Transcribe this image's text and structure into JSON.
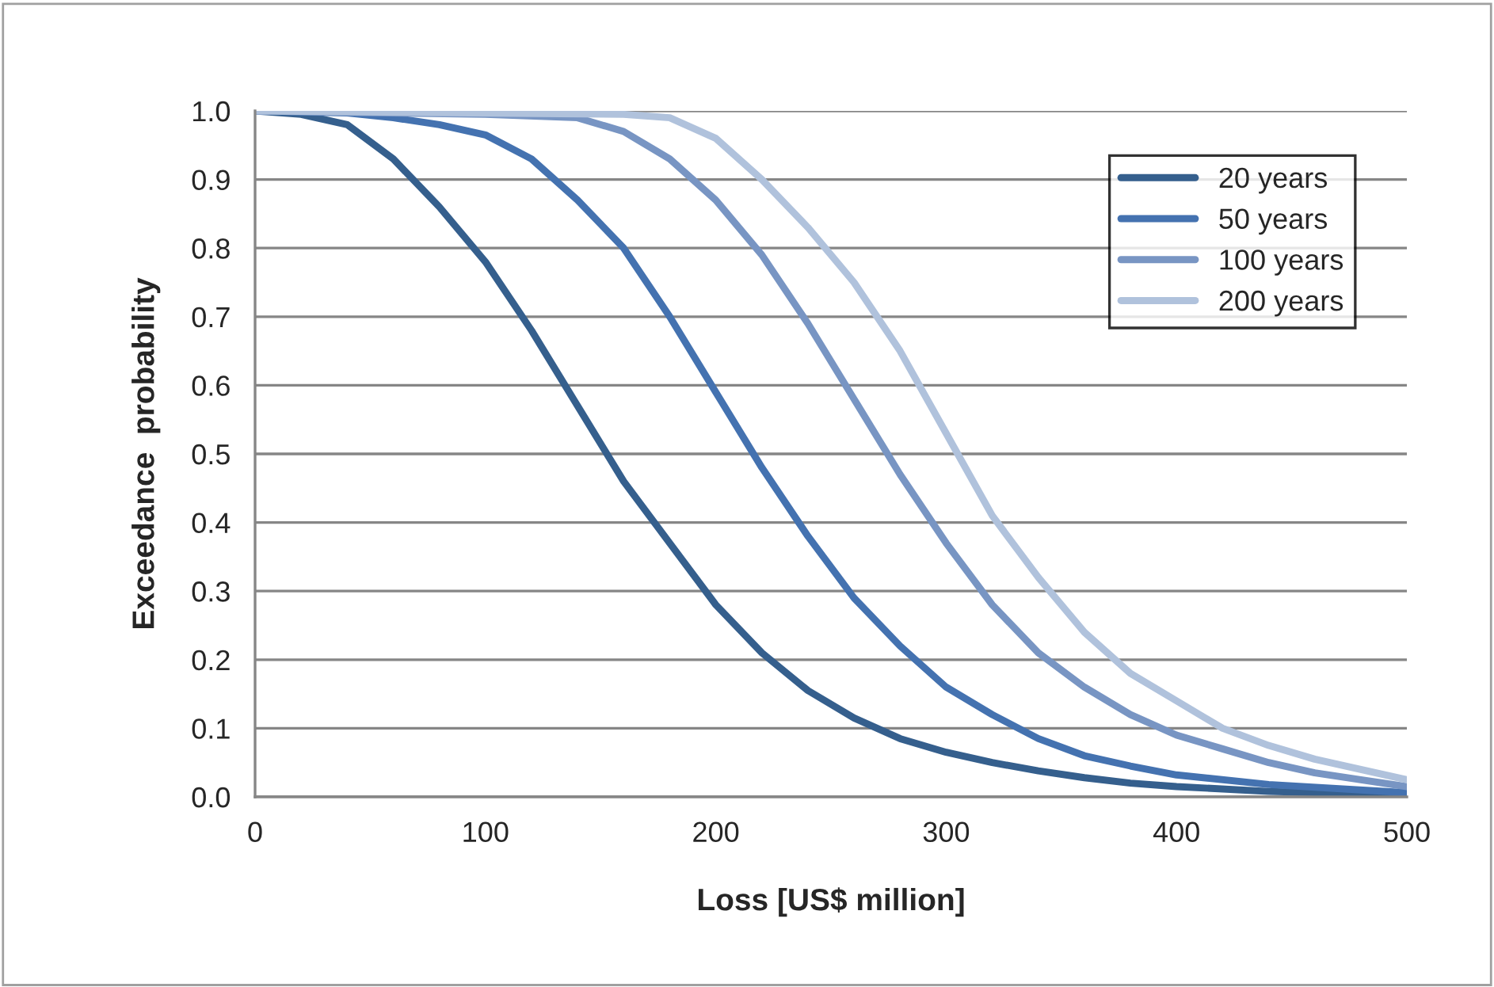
{
  "chart_data": {
    "type": "line",
    "xlabel": "Loss [US$ million]",
    "ylabel": "Exceedance  probability",
    "xlim": [
      0,
      500
    ],
    "xticks": [
      0,
      100,
      200,
      300,
      400,
      500
    ],
    "ylim": [
      0,
      1
    ],
    "yticks": [
      {
        "value": 0,
        "label": "0.0"
      },
      {
        "value": 0.1,
        "label": "0.1"
      },
      {
        "value": 0.2,
        "label": "0.2"
      },
      {
        "value": 0.3,
        "label": "0.3"
      },
      {
        "value": 0.4,
        "label": "0.4"
      },
      {
        "value": 0.5,
        "label": "0.5"
      },
      {
        "value": 0.6,
        "label": "0.6"
      },
      {
        "value": 0.7,
        "label": "0.7"
      },
      {
        "value": 0.8,
        "label": "0.8"
      },
      {
        "value": 0.9,
        "label": "0.9"
      },
      {
        "value": 1,
        "label": "1.0"
      }
    ],
    "grid": "y",
    "legend": "top right",
    "marker": "none",
    "line_style": "solid",
    "series": [
      {
        "name": "20 years",
        "color": "#355f8d",
        "x": [
          0,
          20,
          40,
          60,
          80,
          100,
          120,
          140,
          160,
          180,
          200,
          220,
          240,
          260,
          280,
          300,
          320,
          340,
          360,
          380,
          400,
          440,
          500
        ],
        "values": [
          1.0,
          0.995,
          0.98,
          0.93,
          0.86,
          0.78,
          0.68,
          0.57,
          0.46,
          0.37,
          0.28,
          0.21,
          0.155,
          0.115,
          0.085,
          0.065,
          0.05,
          0.038,
          0.028,
          0.02,
          0.015,
          0.008,
          0.003
        ]
      },
      {
        "name": "50 years",
        "color": "#4472b0",
        "x": [
          0,
          40,
          60,
          80,
          100,
          120,
          140,
          160,
          180,
          200,
          220,
          240,
          260,
          280,
          300,
          320,
          340,
          360,
          380,
          400,
          440,
          500
        ],
        "values": [
          1.0,
          0.997,
          0.99,
          0.98,
          0.965,
          0.93,
          0.87,
          0.8,
          0.7,
          0.59,
          0.48,
          0.38,
          0.29,
          0.22,
          0.16,
          0.12,
          0.085,
          0.06,
          0.045,
          0.032,
          0.018,
          0.006
        ]
      },
      {
        "name": "100 years",
        "color": "#7895c3",
        "x": [
          0,
          100,
          140,
          160,
          180,
          200,
          220,
          240,
          260,
          280,
          300,
          320,
          340,
          360,
          380,
          400,
          420,
          440,
          460,
          480,
          500
        ],
        "values": [
          1.0,
          0.995,
          0.99,
          0.97,
          0.93,
          0.87,
          0.79,
          0.69,
          0.58,
          0.47,
          0.37,
          0.28,
          0.21,
          0.16,
          0.12,
          0.09,
          0.07,
          0.05,
          0.035,
          0.025,
          0.015
        ]
      },
      {
        "name": "200 years",
        "color": "#b0c2dc",
        "x": [
          0,
          160,
          180,
          200,
          220,
          240,
          260,
          280,
          300,
          320,
          340,
          360,
          380,
          400,
          420,
          440,
          460,
          480,
          500
        ],
        "values": [
          1.0,
          0.995,
          0.99,
          0.96,
          0.9,
          0.83,
          0.75,
          0.65,
          0.53,
          0.41,
          0.32,
          0.24,
          0.18,
          0.14,
          0.1,
          0.075,
          0.055,
          0.04,
          0.025
        ]
      }
    ]
  }
}
